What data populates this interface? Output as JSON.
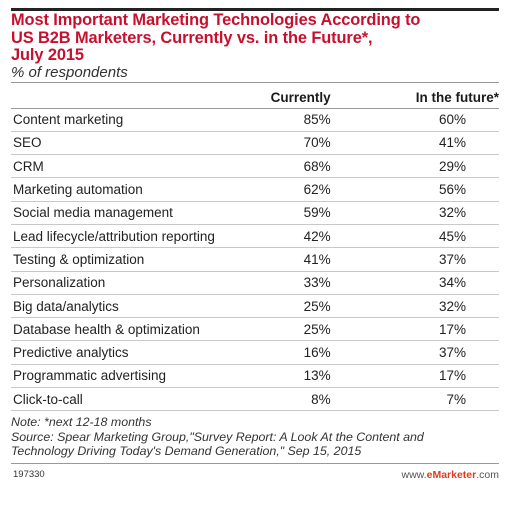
{
  "chart_data": {
    "type": "table",
    "title_lines": [
      "Most Important Marketing Technologies According to",
      "US B2B Marketers, Currently vs. in the Future*,",
      "July 2015"
    ],
    "subtitle": "% of respondents",
    "columns": [
      "",
      "Currently",
      "In the future*"
    ],
    "rows": [
      {
        "label": "Content marketing",
        "currently": "85%",
        "future": "60%"
      },
      {
        "label": "SEO",
        "currently": "70%",
        "future": "41%"
      },
      {
        "label": "CRM",
        "currently": "68%",
        "future": "29%"
      },
      {
        "label": "Marketing automation",
        "currently": "62%",
        "future": "56%"
      },
      {
        "label": "Social media management",
        "currently": "59%",
        "future": "32%"
      },
      {
        "label": "Lead lifecycle/attribution reporting",
        "currently": "42%",
        "future": "45%"
      },
      {
        "label": "Testing & optimization",
        "currently": "41%",
        "future": "37%"
      },
      {
        "label": "Personalization",
        "currently": "33%",
        "future": "34%"
      },
      {
        "label": "Big data/analytics",
        "currently": "25%",
        "future": "32%"
      },
      {
        "label": "Database health & optimization",
        "currently": "25%",
        "future": "17%"
      },
      {
        "label": "Predictive analytics",
        "currently": "16%",
        "future": "37%"
      },
      {
        "label": "Programmatic advertising",
        "currently": "13%",
        "future": "17%"
      },
      {
        "label": "Click-to-call",
        "currently": "8%",
        "future": "7%"
      }
    ],
    "notes": [
      "Note: *next 12-18 months",
      "Source: Spear Marketing Group,\"Survey Report: A Look At the Content and",
      "Technology Driving Today's Demand Generation,\" Sep 15, 2015"
    ],
    "chart_id": "197330",
    "brand_prefix": "www.",
    "brand_name": "eMarketer",
    "brand_suffix": ".com"
  },
  "colors": {
    "title": "#c8102e",
    "brand_accent": "#e03a1e"
  }
}
